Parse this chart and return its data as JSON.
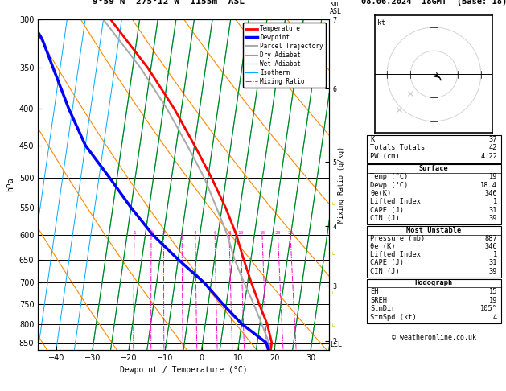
{
  "title_left": "9°59'N  275°12'W  1155m  ASL",
  "title_right": "08.06.2024  18GMT  (Base: 18)",
  "xlabel": "Dewpoint / Temperature (°C)",
  "ylabel_left": "hPa",
  "pressure_ticks": [
    300,
    350,
    400,
    450,
    500,
    550,
    600,
    650,
    700,
    750,
    800,
    850
  ],
  "xticks": [
    -40,
    -30,
    -20,
    -10,
    0,
    10,
    20,
    30
  ],
  "T_MIN": -45,
  "T_MAX": 35,
  "P_MIN": 300,
  "P_MAX": 870,
  "skew_factor": 13.0,
  "legend_items": [
    {
      "label": "Temperature",
      "color": "#ff0000",
      "lw": 2.0,
      "ls": "-"
    },
    {
      "label": "Dewpoint",
      "color": "#0000ff",
      "lw": 2.5,
      "ls": "-"
    },
    {
      "label": "Parcel Trajectory",
      "color": "#aaaaaa",
      "lw": 1.5,
      "ls": "-"
    },
    {
      "label": "Dry Adiabat",
      "color": "#ff8800",
      "lw": 0.8,
      "ls": "-"
    },
    {
      "label": "Wet Adiabat",
      "color": "#008800",
      "lw": 0.8,
      "ls": "-"
    },
    {
      "label": "Isotherm",
      "color": "#00aaff",
      "lw": 0.8,
      "ls": "-"
    },
    {
      "label": "Mixing Ratio",
      "color": "#ff00cc",
      "lw": 0.8,
      "ls": "-."
    }
  ],
  "temp_profile_p": [
    870,
    850,
    800,
    750,
    700,
    650,
    600,
    550,
    500,
    450,
    400,
    350,
    320,
    300
  ],
  "temp_profile_T": [
    19,
    19,
    17,
    14,
    11,
    8,
    5,
    1,
    -4,
    -10,
    -17,
    -26,
    -33,
    -38
  ],
  "dew_profile_p": [
    870,
    850,
    800,
    750,
    700,
    650,
    600,
    550,
    500,
    450,
    400,
    350,
    320,
    300
  ],
  "dew_profile_T": [
    18.4,
    17.5,
    10,
    4,
    -2,
    -10,
    -18,
    -25,
    -32,
    -40,
    -46,
    -52,
    -56,
    -60
  ],
  "parcel_profile_p": [
    870,
    855,
    800,
    750,
    700,
    650,
    600,
    550,
    500,
    450,
    400,
    350,
    320,
    300
  ],
  "parcel_profile_T": [
    19,
    18.5,
    15.5,
    12.5,
    9.0,
    5.5,
    2.5,
    -1.5,
    -6,
    -12,
    -19,
    -28,
    -35,
    -40
  ],
  "lcl_pressure": 855,
  "mixing_ratios": [
    1,
    1.5,
    2,
    3,
    4,
    6,
    8,
    10,
    15,
    20,
    25
  ],
  "mr_labels": [
    "1",
    "1½",
    "2",
    "3",
    "4",
    "6",
    "8",
    "10",
    "15",
    "20",
    "25"
  ],
  "km_tick_pressures": [
    845,
    705,
    580,
    470,
    370,
    295
  ],
  "km_tick_labels": [
    "2",
    "3",
    "4",
    "5",
    "6",
    "7"
  ],
  "copyright": "© weatheronline.co.uk",
  "bg_color": "#ffffff",
  "isotherm_color": "#00aaff",
  "dry_adiabat_color": "#ff8800",
  "wet_adiabat_color": "#008800",
  "mixing_ratio_color": "#ff00cc",
  "temp_color": "#ff0000",
  "dew_color": "#0000ff",
  "parcel_color": "#aaaaaa",
  "grid_color": "#000000",
  "stats_rows": [
    [
      "K",
      "37"
    ],
    [
      "Totals Totals",
      "42"
    ],
    [
      "PW (cm)",
      "4.22"
    ]
  ],
  "surface_rows": [
    [
      "Temp (°C)",
      "19"
    ],
    [
      "Dewp (°C)",
      "18.4"
    ],
    [
      "θe(K)",
      "346"
    ],
    [
      "Lifted Index",
      "1"
    ],
    [
      "CAPE (J)",
      "31"
    ],
    [
      "CIN (J)",
      "39"
    ]
  ],
  "unstable_rows": [
    [
      "Pressure (mb)",
      "887"
    ],
    [
      "θe (K)",
      "346"
    ],
    [
      "Lifted Index",
      "1"
    ],
    [
      "CAPE (J)",
      "31"
    ],
    [
      "CIN (J)",
      "39"
    ]
  ],
  "hodo_rows": [
    [
      "EH",
      "15"
    ],
    [
      "SREH",
      "19"
    ],
    [
      "StmDir",
      "105°"
    ],
    [
      "StmSpd (kt)",
      "4"
    ]
  ],
  "yellow_bracket_pressures": [
    540,
    635,
    720,
    800
  ],
  "yellow_color": "#cccc00"
}
